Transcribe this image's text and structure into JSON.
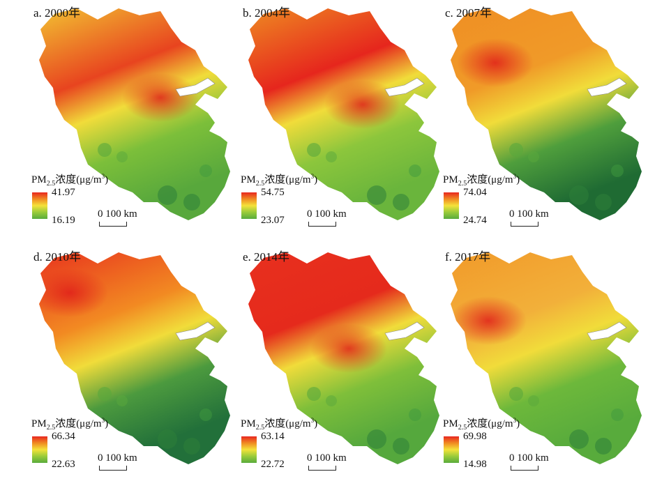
{
  "panels": [
    {
      "title": "a. 2000年",
      "legend_max": "41.97",
      "legend_min": "16.19"
    },
    {
      "title": "b. 2004年",
      "legend_max": "54.75",
      "legend_min": "23.07"
    },
    {
      "title": "c. 2007年",
      "legend_max": "74.04",
      "legend_min": "24.74"
    },
    {
      "title": "d. 2010年",
      "legend_max": "66.34",
      "legend_min": "22.63"
    },
    {
      "title": "e. 2014年",
      "legend_max": "63.14",
      "legend_min": "22.72"
    },
    {
      "title": "f. 2017年",
      "legend_max": "69.98",
      "legend_min": "14.98"
    }
  ],
  "legend": {
    "label_prefix": "PM",
    "label_sub": "2.5",
    "label_mid": "浓度(μg/m",
    "label_sup": "3",
    "label_end": ")"
  },
  "scale_bar": {
    "label": "0 100 km"
  },
  "colors": {
    "high": "#e8271f",
    "mid_high": "#f08a22",
    "mid": "#f4e23a",
    "mid_low": "#9acb3a",
    "low": "#3f9a3e",
    "lowest": "#1f6b33"
  }
}
